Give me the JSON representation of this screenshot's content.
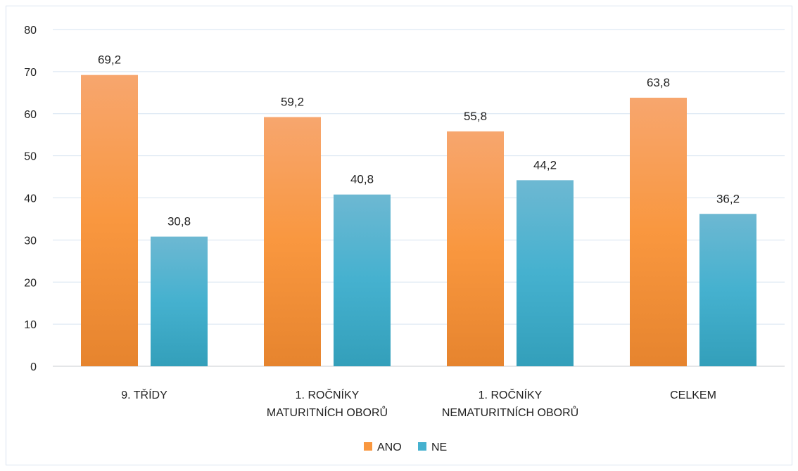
{
  "chart_data": {
    "type": "bar",
    "categories": [
      [
        "9. TŘÍDY"
      ],
      [
        "1. ROČNÍKY",
        "MATURITNÍCH OBORŮ"
      ],
      [
        "1. ROČNÍKY",
        "NEMATURITNÍCH OBORŮ"
      ],
      [
        "CELKEM"
      ]
    ],
    "series": [
      {
        "name": "ANO",
        "values": [
          69.2,
          59.2,
          55.8,
          63.8
        ],
        "labels": [
          "69,2",
          "59,2",
          "55,8",
          "63,8"
        ],
        "color_top": "#F7A66E",
        "color_mid": "#F9973F",
        "color_bottom": "#E6842E"
      },
      {
        "name": "NE",
        "values": [
          30.8,
          40.8,
          44.2,
          36.2
        ],
        "labels": [
          "30,8",
          "40,8",
          "44,2",
          "36,2"
        ],
        "color_top": "#6DB8D2",
        "color_mid": "#45B1CF",
        "color_bottom": "#339FBA"
      }
    ],
    "ylim": [
      0,
      80
    ],
    "yticks": [
      0,
      10,
      20,
      30,
      40,
      50,
      60,
      70,
      80
    ],
    "grid": true,
    "legend": "bottom-center"
  }
}
